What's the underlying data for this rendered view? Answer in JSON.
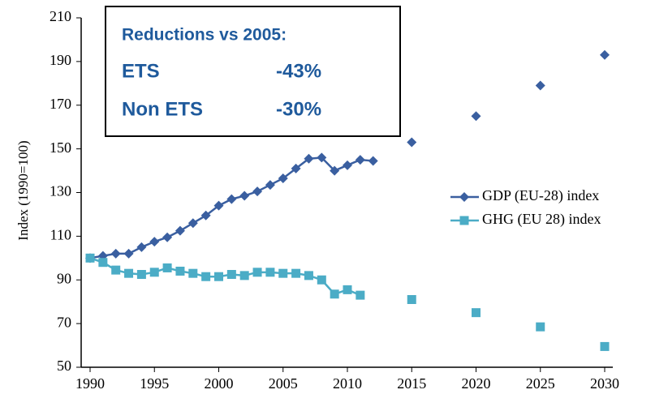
{
  "chart_data": {
    "type": "line",
    "y_axis_label": "Index (1990=100)",
    "x": [
      1990,
      1991,
      1992,
      1993,
      1994,
      1995,
      1996,
      1997,
      1998,
      1999,
      2000,
      2001,
      2002,
      2003,
      2004,
      2005,
      2006,
      2007,
      2008,
      2009,
      2010,
      2011,
      2012
    ],
    "projection_x": [
      2015,
      2020,
      2025,
      2030
    ],
    "series": [
      {
        "name": "GDP (EU-28) index",
        "color": "#3a5fa0",
        "marker": "diamond",
        "values": [
          100,
          101,
          102,
          102,
          105,
          107.5,
          109.5,
          112.5,
          116,
          119.5,
          124,
          127,
          128.5,
          130.5,
          133.5,
          136.5,
          141,
          145.5,
          146,
          140,
          142.5,
          145,
          144.5
        ],
        "projection_values": [
          153,
          165,
          179,
          193
        ]
      },
      {
        "name": "GHG (EU 28) index",
        "color": "#4bacc6",
        "marker": "square",
        "values": [
          100,
          98,
          94.5,
          93,
          92.5,
          93.5,
          95.5,
          94,
          93,
          91.5,
          91.5,
          92.5,
          92,
          93.5,
          93.5,
          93,
          93,
          92,
          90,
          83.5,
          85.5,
          83,
          null
        ],
        "projection_values": [
          81,
          75,
          68.5,
          59.5
        ]
      }
    ],
    "xlim": [
      1990,
      2030
    ],
    "xticks": [
      1990,
      1995,
      2000,
      2005,
      2010,
      2015,
      2020,
      2025,
      2030
    ],
    "ylim": [
      50,
      210
    ],
    "yticks": [
      50,
      70,
      90,
      110,
      130,
      150,
      170,
      190,
      210
    ],
    "legend": "right",
    "annotation": {
      "title": "Reductions vs 2005:",
      "rows": [
        [
          "ETS",
          "-43%"
        ],
        [
          "Non ETS",
          "-30%"
        ]
      ]
    }
  }
}
